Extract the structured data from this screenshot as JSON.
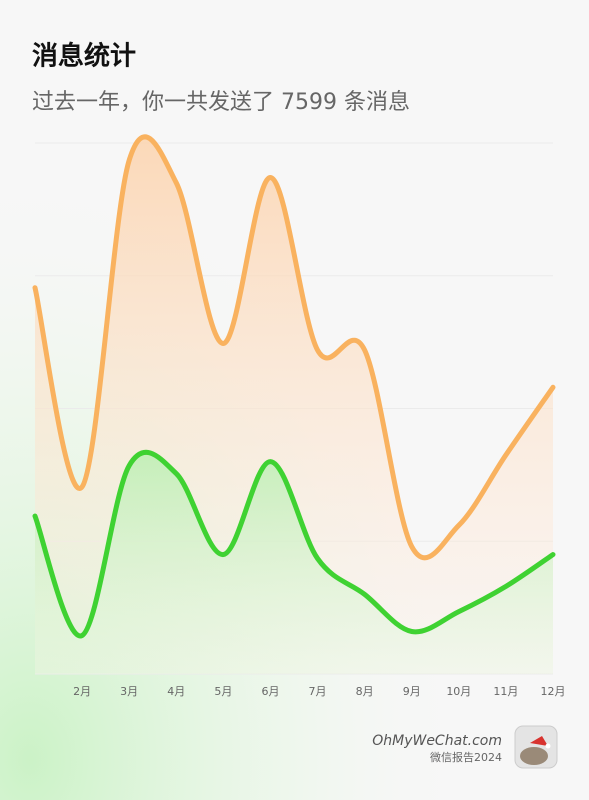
{
  "chart_data": {
    "type": "line",
    "title": "消息统计",
    "subtitle": "过去一年，你一共发送了 7599 条消息",
    "categories": [
      null,
      "2月",
      "3月",
      "4月",
      "5月",
      "6月",
      "7月",
      "8月",
      "9月",
      "10月",
      "11月",
      "12月"
    ],
    "series": [
      {
        "color": "#f9b25f",
        "values": [
          291,
          141,
          387,
          370,
          249,
          374,
          244,
          244,
          96,
          112,
          165,
          216
        ]
      },
      {
        "color": "#3fd232",
        "values": [
          119,
          29,
          157,
          151,
          90,
          160,
          87,
          60,
          32,
          47,
          66,
          90
        ]
      }
    ],
    "ylim": [
      0,
      400
    ],
    "yticks": [
      0,
      100,
      200,
      300,
      400
    ],
    "grid": true
  },
  "branding": {
    "site": "OhMyWeChat.com",
    "caption": "微信报告2024"
  }
}
